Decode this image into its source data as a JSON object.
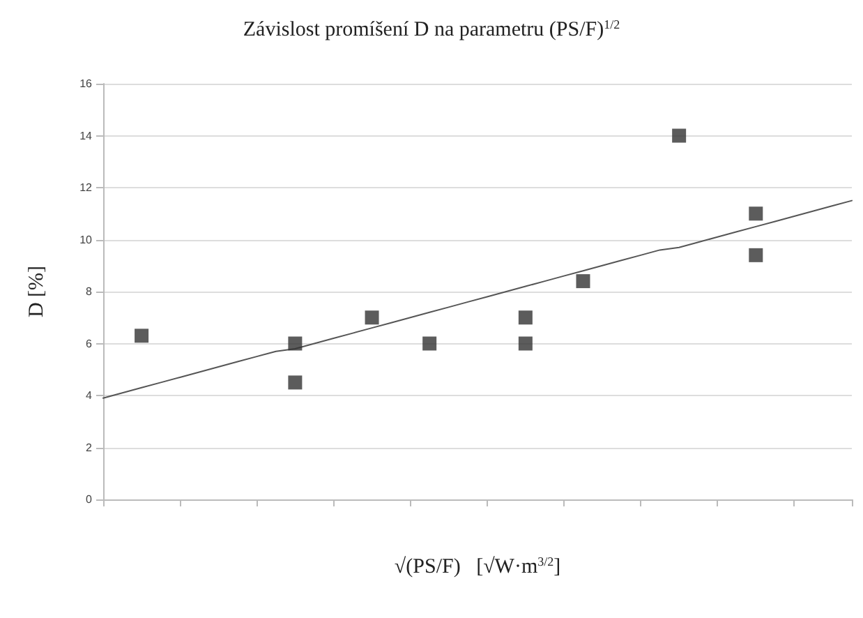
{
  "chart_data": {
    "type": "scatter",
    "title": "Závislost promíšení D na parametru (PS/F)$^{1/2}$",
    "xlabel": "√(PS/F)   [√W·m$^{3/2}$]",
    "ylabel": "D [%]",
    "categories": [
      null,
      null,
      null,
      null,
      null,
      null,
      null,
      null,
      null,
      null,
      null,
      null,
      null,
      null,
      null,
      null,
      null,
      null,
      null,
      null,
      null,
      null,
      null,
      null,
      null,
      null,
      null,
      null,
      null,
      null,
      null,
      null,
      null,
      null,
      null,
      null,
      null,
      null,
      null,
      null
    ],
    "series": [
      {
        "color": "#333333",
        "values": [
          null,
          null,
          6.3,
          null,
          null,
          null,
          null,
          null,
          null,
          null,
          6.0,
          null,
          null,
          null,
          7.0,
          null,
          null,
          6.0,
          null,
          null,
          null,
          null,
          7.0,
          null,
          null,
          8.4,
          null,
          null,
          null,
          null,
          14,
          null,
          null,
          null,
          11,
          null,
          null,
          null,
          null,
          null
        ]
      },
      {
        "color": "#333333",
        "values": [
          null,
          null,
          null,
          null,
          null,
          null,
          null,
          null,
          null,
          null,
          4.5,
          null,
          null,
          null,
          null,
          null,
          null,
          null,
          null,
          null,
          null,
          null,
          6.0,
          null,
          null,
          null,
          null,
          null,
          null,
          null,
          null,
          null,
          null,
          null,
          9.4,
          null,
          null,
          null,
          null,
          null
        ]
      },
      {
        "type": "line",
        "color": "#555555",
        "marker": "none",
        "values": [
          3.9,
          4.1,
          4.3,
          4.5,
          4.7,
          4.9,
          5.1,
          5.3,
          5.5,
          5.7,
          5.8,
          6.0,
          6.2,
          6.4,
          6.6,
          6.8,
          7.0,
          7.2,
          7.4,
          7.6,
          7.8,
          8.0,
          8.2,
          8.4,
          8.6,
          8.8,
          9.0,
          9.2,
          9.4,
          9.6,
          9.7,
          9.9,
          10.1,
          10.3,
          10.5,
          10.7,
          10.9,
          11.1,
          11.3,
          11.5
        ]
      }
    ],
    "ylim": [
      0,
      16
    ],
    "yticks": [
      0,
      2,
      4,
      6,
      8,
      10,
      12,
      14,
      16
    ],
    "tick_labels": "y",
    "grid": "y",
    "marker": "square"
  }
}
